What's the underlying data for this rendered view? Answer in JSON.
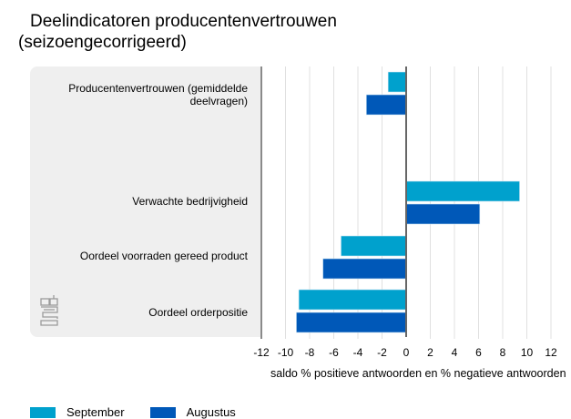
{
  "title_line1": "Deelindicatoren producentenvertrouwen",
  "title_line2": "(seizoengecorrigeerd)",
  "logo_text": "cbs",
  "chart_data": {
    "type": "bar",
    "orientation": "horizontal",
    "title": "Deelindicatoren producentenvertrouwen (seizoengecorrigeerd)",
    "categories": [
      [
        "Producentenvertrouwen (gemiddelde",
        "deelvragen)"
      ],
      [
        "Verwachte bedrijvigheid"
      ],
      [
        "Oordeel voorraden gereed product"
      ],
      [
        "Oordeel orderpositie"
      ]
    ],
    "series": [
      {
        "name": "September",
        "color": "#00a1cd",
        "values": [
          -1.5,
          9.4,
          -5.4,
          -8.9
        ]
      },
      {
        "name": "Augustus",
        "color": "#0058b8",
        "values": [
          -3.3,
          6.1,
          -6.9,
          -9.1
        ]
      }
    ],
    "xlabel": "saldo % positieve antwoorden en % negatieve antwoorden",
    "xlim": [
      -12,
      12
    ],
    "xticks": [
      "-12",
      "-10",
      "-8",
      "-6",
      "-4",
      "-2",
      "0",
      "2",
      "4",
      "6",
      "8",
      "10",
      "12"
    ],
    "grid": true,
    "legend": "bottom-left"
  },
  "colors": {
    "panel": "#efefef",
    "grid": "#e0e0e0",
    "axis": "#666666"
  }
}
